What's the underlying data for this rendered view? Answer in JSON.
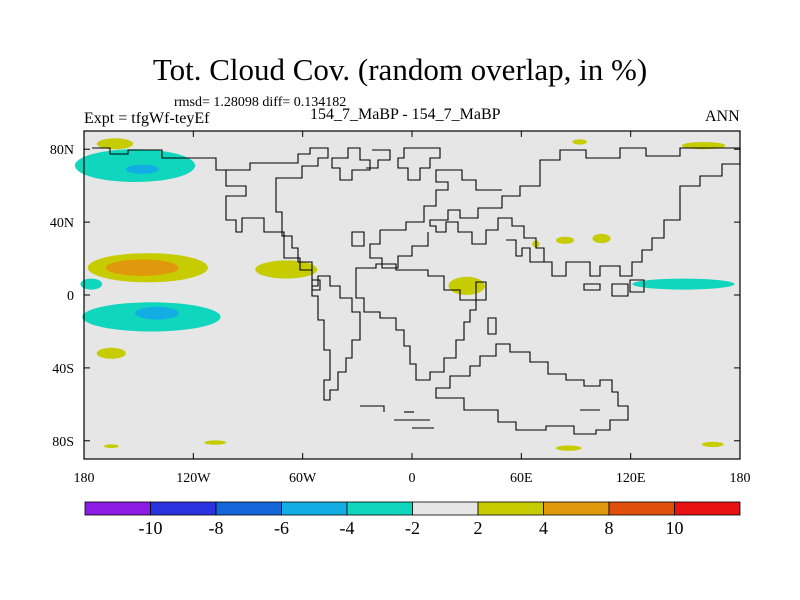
{
  "chart_data": {
    "type": "contour_map",
    "title": "Tot. Cloud Cov. (random overlap, in %)",
    "stats_label": "rmsd= 1.28098 diff= 0.134182",
    "experiment_label": "Expt = tfgWf-teyEf",
    "subtitle": "154_7_MaBP - 154_7_MaBP",
    "season": "ANN",
    "lon_range": [
      -180,
      180
    ],
    "lat_range": [
      -90,
      90
    ],
    "lon_ticks": [
      {
        "value": -180,
        "label": "180"
      },
      {
        "value": -120,
        "label": "120W"
      },
      {
        "value": -60,
        "label": "60W"
      },
      {
        "value": 0,
        "label": "0"
      },
      {
        "value": 60,
        "label": "60E"
      },
      {
        "value": 120,
        "label": "120E"
      },
      {
        "value": 180,
        "label": "180"
      }
    ],
    "lat_ticks": [
      {
        "value": 80,
        "label": "80N"
      },
      {
        "value": 40,
        "label": "40N"
      },
      {
        "value": 0,
        "label": "0"
      },
      {
        "value": -40,
        "label": "40S"
      },
      {
        "value": -80,
        "label": "80S"
      }
    ],
    "colorbar": {
      "boundaries": [
        "-10",
        "-8",
        "-6",
        "-4",
        "-2",
        "2",
        "4",
        "8",
        "10"
      ],
      "colors": [
        "#8C1BE6",
        "#2B33E0",
        "#1466D9",
        "#12AEE3",
        "#11D6BE",
        "#E6E6E6",
        "#C7CC00",
        "#E0980C",
        "#E0500C",
        "#E81212"
      ]
    },
    "anomalies": [
      {
        "name": "north-pacific-high-lat",
        "lon": -152,
        "lat": 71,
        "lon_half": 33,
        "lat_half": 9,
        "level": -4
      },
      {
        "name": "north-pacific-high-lat-core",
        "lon": -148,
        "lat": 69,
        "lon_half": 9,
        "lat_half": 2.5,
        "level": -6
      },
      {
        "name": "north-pacific-yellow",
        "lon": -163,
        "lat": 83,
        "lon_half": 10,
        "lat_half": 3,
        "level": 2
      },
      {
        "name": "north-pacific-subtropical",
        "lon": -145,
        "lat": 15,
        "lon_half": 33,
        "lat_half": 8,
        "level": 4
      },
      {
        "name": "north-pacific-subtropical-core",
        "lon": -148,
        "lat": 15,
        "lon_half": 20,
        "lat_half": 4.5,
        "level": 8
      },
      {
        "name": "equatorial-pacific",
        "lon": -176,
        "lat": 6,
        "lon_half": 6,
        "lat_half": 3,
        "level": -4
      },
      {
        "name": "south-pacific-band",
        "lon": -143,
        "lat": -12,
        "lon_half": 38,
        "lat_half": 8,
        "level": -4
      },
      {
        "name": "south-pacific-core",
        "lon": -140,
        "lat": -10,
        "lon_half": 12,
        "lat_half": 3.5,
        "level": -6
      },
      {
        "name": "south-pacific-yellow",
        "lon": -165,
        "lat": -32,
        "lon_half": 8,
        "lat_half": 3,
        "level": 2
      },
      {
        "name": "mexico-yellow",
        "lon": -69,
        "lat": 14,
        "lon_half": 17,
        "lat_half": 5,
        "level": 2
      },
      {
        "name": "africa-yellow",
        "lon": 30,
        "lat": 5,
        "lon_half": 10,
        "lat_half": 5,
        "level": 2
      },
      {
        "name": "india-yellow",
        "lon": 84,
        "lat": 30,
        "lon_half": 5,
        "lat_half": 2,
        "level": 2
      },
      {
        "name": "china-yellow",
        "lon": 104,
        "lat": 31,
        "lon_half": 5,
        "lat_half": 2.5,
        "level": 2
      },
      {
        "name": "arabia-yellow",
        "lon": 68,
        "lat": 28,
        "lon_half": 2,
        "lat_half": 2,
        "level": 2
      },
      {
        "name": "west-pacific-equatorial",
        "lon": 149,
        "lat": 6,
        "lon_half": 28,
        "lat_half": 3,
        "level": -4
      },
      {
        "name": "arctic-yellow-east",
        "lon": 160,
        "lat": 82,
        "lon_half": 12,
        "lat_half": 2,
        "level": 2
      },
      {
        "name": "siberia-yellow",
        "lon": 92,
        "lat": 84,
        "lon_half": 4,
        "lat_half": 1.5,
        "level": 2
      },
      {
        "name": "antarctic-yellow-1",
        "lon": 86,
        "lat": -84,
        "lon_half": 7,
        "lat_half": 1.5,
        "level": 2
      },
      {
        "name": "antarctic-yellow-2",
        "lon": 165,
        "lat": -82,
        "lon_half": 6,
        "lat_half": 1.5,
        "level": 2
      },
      {
        "name": "antarctic-yellow-3",
        "lon": -108,
        "lat": -81,
        "lon_half": 6,
        "lat_half": 1.2,
        "level": 2
      },
      {
        "name": "antarctic-yellow-4",
        "lon": -165,
        "lat": -83,
        "lon_half": 4,
        "lat_half": 1,
        "level": 2
      }
    ]
  }
}
